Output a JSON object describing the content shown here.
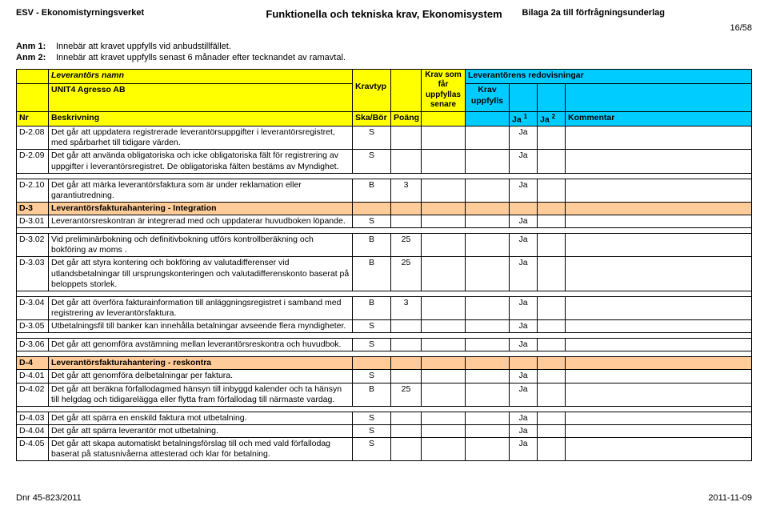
{
  "header": {
    "left": "ESV - Ekonomistyrningsverket",
    "center": "Funktionella och tekniska krav, Ekonomisystem",
    "right": "Bilaga 2a till förfrågningsunderlag",
    "page": "16/58"
  },
  "anm": {
    "l1": "Anm 1:",
    "t1": "Innebär att kravet uppfylls vid anbudstillfället.",
    "l2": "Anm 2:",
    "t2": "Innebär att kravet uppfylls senast 6 månader efter tecknandet av ramavtal."
  },
  "th": {
    "lev_namn": "Leverantörs namn",
    "lev_redo": "Leverantörens redovisningar",
    "company": "UNIT4 Agresso AB",
    "kravtyp": "Kravtyp",
    "krav_som": "Krav som får uppfyllas senare",
    "krav_upp": "Krav uppfylls",
    "nr": "Nr",
    "beskrivning": "Beskrivning",
    "skabor": "Ska/Bör",
    "poang": "Poäng",
    "ja1": "Ja ",
    "ja1_sup": "1",
    "ja2": "Ja ",
    "ja2_sup": "2",
    "kommentar": "Kommentar"
  },
  "rows": [
    {
      "nr": "D-2.08",
      "desc": "Det går att uppdatera registrerade leverantörsuppgifter i leverantörsregistret, med spårbarhet till tidigare värden.",
      "typ": "S",
      "poang": "",
      "senare": "",
      "upp": "",
      "ja1": "Ja",
      "ja2": "",
      "komm": ""
    },
    {
      "nr": "D-2.09",
      "desc": "Det går att använda obligatoriska och icke obligatoriska fält för registrering av uppgifter i leverantörsregistret. De obligatoriska  fälten bestäms av Myndighet.",
      "typ": "S",
      "poang": "",
      "senare": "",
      "upp": "",
      "ja1": "Ja",
      "ja2": "",
      "komm": ""
    },
    {
      "gap": true
    },
    {
      "nr": "D-2.10",
      "desc": "Det går att märka leverantörsfaktura som är under reklamation eller garantiutredning.",
      "typ": "B",
      "poang": "3",
      "senare": "",
      "upp": "",
      "ja1": "Ja",
      "ja2": "",
      "komm": ""
    },
    {
      "section": true,
      "nr": "D-3",
      "desc": "Leverantörsfakturahantering - Integration"
    },
    {
      "nr": "D-3.01",
      "desc": "Leverantörsreskontran är integrerad med och uppdaterar huvudboken löpande.",
      "typ": "S",
      "poang": "",
      "senare": "",
      "upp": "",
      "ja1": "Ja",
      "ja2": "",
      "komm": ""
    },
    {
      "gap": true
    },
    {
      "nr": "D-3.02",
      "desc": "Vid preliminärbokning och definitivbokning utförs kontrollberäkning och bokföring av moms .",
      "typ": "B",
      "poang": "25",
      "senare": "",
      "upp": "",
      "ja1": "Ja",
      "ja2": "",
      "komm": ""
    },
    {
      "nr": "D-3.03",
      "desc": "Det går att styra kontering och bokföring av valutadifferenser vid utlandsbetalningar till ursprungskonteringen och valutadifferenskonto baserat på beloppets storlek.",
      "typ": "B",
      "poang": "25",
      "senare": "",
      "upp": "",
      "ja1": "Ja",
      "ja2": "",
      "komm": ""
    },
    {
      "gap": true
    },
    {
      "nr": "D-3.04",
      "desc": "Det går att överföra fakturainformation till anläggningsregistret i samband med registrering av leverantörsfaktura.",
      "typ": "B",
      "poang": "3",
      "senare": "",
      "upp": "",
      "ja1": "Ja",
      "ja2": "",
      "komm": ""
    },
    {
      "nr": "D-3.05",
      "desc": "Utbetalningsfil till banker kan innehålla betalningar avseende flera myndigheter.",
      "typ": "S",
      "poang": "",
      "senare": "",
      "upp": "",
      "ja1": "Ja",
      "ja2": "",
      "komm": ""
    },
    {
      "gap": true
    },
    {
      "nr": "D-3.06",
      "desc": "Det går att genomföra avstämning mellan leverantörsreskontra och huvudbok.",
      "typ": "S",
      "poang": "",
      "senare": "",
      "upp": "",
      "ja1": "Ja",
      "ja2": "",
      "komm": ""
    },
    {
      "gap": true
    },
    {
      "section": true,
      "nr": "D-4",
      "desc": "Leverantörsfakturahantering - reskontra"
    },
    {
      "nr": "D-4.01",
      "desc": "Det går att genomföra delbetalningar per faktura.",
      "typ": "S",
      "poang": "",
      "senare": "",
      "upp": "",
      "ja1": "Ja",
      "ja2": "",
      "komm": ""
    },
    {
      "nr": "D-4.02",
      "desc": "Det går att beräkna förfallodagmed hänsyn till inbyggd kalender och ta hänsyn till helgdag och tidigarelägga eller flytta fram förfallodag till närmaste vardag.",
      "typ": "B",
      "poang": "25",
      "senare": "",
      "upp": "",
      "ja1": "Ja",
      "ja2": "",
      "komm": ""
    },
    {
      "gap": true
    },
    {
      "nr": "D-4.03",
      "desc": "Det går att spärra en enskild faktura mot utbetalning.",
      "typ": "S",
      "poang": "",
      "senare": "",
      "upp": "",
      "ja1": "Ja",
      "ja2": "",
      "komm": ""
    },
    {
      "nr": "D-4.04",
      "desc": "Det går att spärra leverantör mot utbetalning.",
      "typ": "S",
      "poang": "",
      "senare": "",
      "upp": "",
      "ja1": "Ja",
      "ja2": "",
      "komm": ""
    },
    {
      "nr": "D-4.05",
      "desc": "Det går att skapa automatiskt betalningsförslag till och med vald förfallodag baserat på statusnivåerna attesterad och klar för betalning.",
      "typ": "S",
      "poang": "",
      "senare": "",
      "upp": "",
      "ja1": "Ja",
      "ja2": "",
      "komm": ""
    }
  ],
  "footer": {
    "left": "Dnr 45-823/2011",
    "right": "2011-11-09"
  }
}
